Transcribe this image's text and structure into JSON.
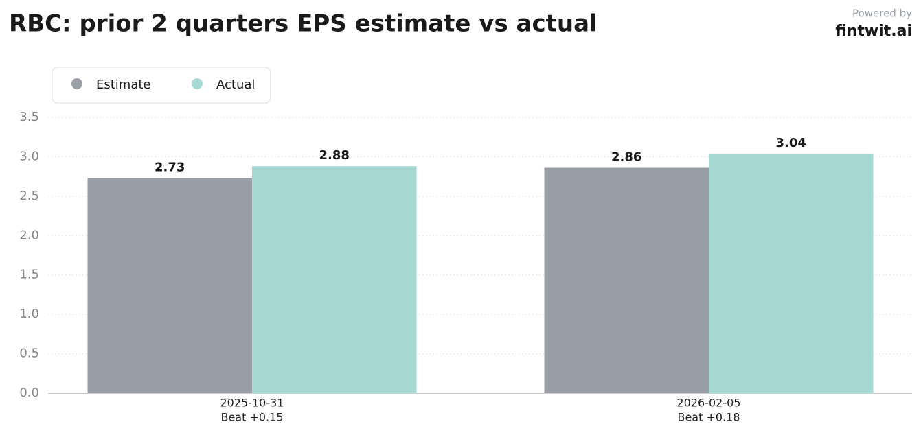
{
  "chart_data": {
    "type": "bar",
    "title": "RBC: prior 2 quarters EPS estimate vs actual",
    "brand_caption": "Powered by",
    "brand": "fintwit.ai",
    "categories": [
      "2025-10-31",
      "2026-02-05"
    ],
    "category_notes": [
      "Beat +0.15",
      "Beat +0.18"
    ],
    "series": [
      {
        "name": "Estimate",
        "color": "#9a9ea6",
        "values": [
          2.73,
          2.86
        ]
      },
      {
        "name": "Actual",
        "color": "#a8d8d4",
        "values": [
          2.88,
          3.04
        ]
      }
    ],
    "ylim": [
      0,
      3.5
    ],
    "yticks": [
      {
        "value": 0,
        "label": "0.0"
      },
      0.5,
      {
        "value": 1,
        "label": "1.0"
      },
      1.5,
      {
        "value": 2,
        "label": "2.0"
      },
      2.5,
      {
        "value": 3,
        "label": "3.0"
      },
      3.5
    ],
    "grid": true,
    "legend": "top-left"
  }
}
